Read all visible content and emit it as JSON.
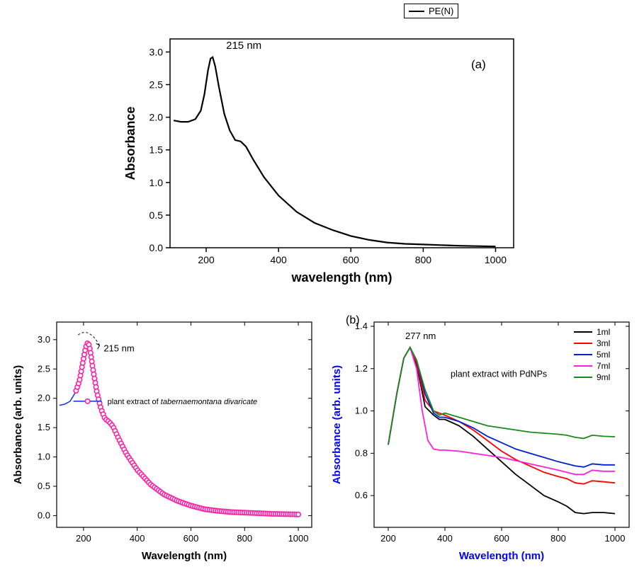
{
  "legend_top": {
    "label": "PE(N)",
    "color": "#000000"
  },
  "chart_a": {
    "type": "line",
    "panel_label": "(a)",
    "peak_label": "215 nm",
    "xlabel": "wavelength (nm)",
    "ylabel": "Absorbance",
    "xlim": [
      100,
      1050
    ],
    "ylim": [
      0,
      3.2
    ],
    "xticks": [
      200,
      400,
      600,
      800,
      1000
    ],
    "yticks": [
      0.0,
      0.5,
      1.0,
      1.5,
      2.0,
      2.5,
      3.0
    ],
    "ytick_labels": [
      "0.0",
      "0.5",
      "1.0",
      "1.5",
      "2.0",
      "2.5",
      "3.0"
    ],
    "line_color": "#000000",
    "line_width": 2.2,
    "background_color": "#ffffff",
    "axis_color": "#000000",
    "data": [
      [
        110,
        1.95
      ],
      [
        130,
        1.93
      ],
      [
        150,
        1.93
      ],
      [
        170,
        1.97
      ],
      [
        185,
        2.1
      ],
      [
        195,
        2.35
      ],
      [
        205,
        2.72
      ],
      [
        212,
        2.9
      ],
      [
        218,
        2.92
      ],
      [
        225,
        2.78
      ],
      [
        235,
        2.47
      ],
      [
        250,
        2.05
      ],
      [
        265,
        1.8
      ],
      [
        280,
        1.65
      ],
      [
        295,
        1.63
      ],
      [
        310,
        1.55
      ],
      [
        330,
        1.35
      ],
      [
        360,
        1.08
      ],
      [
        400,
        0.8
      ],
      [
        450,
        0.55
      ],
      [
        500,
        0.38
      ],
      [
        550,
        0.27
      ],
      [
        600,
        0.18
      ],
      [
        650,
        0.12
      ],
      [
        700,
        0.08
      ],
      [
        750,
        0.06
      ],
      [
        800,
        0.05
      ],
      [
        850,
        0.04
      ],
      [
        900,
        0.03
      ],
      [
        950,
        0.025
      ],
      [
        1000,
        0.02
      ]
    ]
  },
  "chart_b_left": {
    "type": "line_with_markers",
    "peak_label": "215 nm",
    "legend_text": "plant extract of tabernaemontana divaricate",
    "xlabel": "Wavelength (nm)",
    "ylabel": "Absorbance (arb. units)",
    "xlim": [
      100,
      1050
    ],
    "ylim": [
      -0.2,
      3.3
    ],
    "xticks": [
      200,
      400,
      600,
      800,
      1000
    ],
    "yticks": [
      0.0,
      0.5,
      1.0,
      1.5,
      2.0,
      2.5,
      3.0
    ],
    "ytick_labels": [
      "0.0",
      "0.5",
      "1.0",
      "1.5",
      "2.0",
      "2.5",
      "3.0"
    ],
    "line_color": "#1a3fd6",
    "marker_color": "#ff1fa3",
    "marker_fill": "#ffffff",
    "marker_size": 3.2,
    "line_width": 1.6,
    "marker_line_width": 1.6,
    "background_color": "#ffffff",
    "axis_color": "#000000",
    "data": [
      [
        110,
        1.88
      ],
      [
        130,
        1.9
      ],
      [
        150,
        1.95
      ],
      [
        170,
        2.1
      ],
      [
        185,
        2.3
      ],
      [
        195,
        2.55
      ],
      [
        205,
        2.8
      ],
      [
        212,
        2.93
      ],
      [
        218,
        2.95
      ],
      [
        225,
        2.82
      ],
      [
        235,
        2.5
      ],
      [
        250,
        2.1
      ],
      [
        265,
        1.82
      ],
      [
        280,
        1.65
      ],
      [
        295,
        1.6
      ],
      [
        310,
        1.52
      ],
      [
        330,
        1.32
      ],
      [
        360,
        1.05
      ],
      [
        400,
        0.78
      ],
      [
        450,
        0.53
      ],
      [
        500,
        0.36
      ],
      [
        550,
        0.25
      ],
      [
        600,
        0.17
      ],
      [
        650,
        0.11
      ],
      [
        700,
        0.08
      ],
      [
        750,
        0.06
      ],
      [
        800,
        0.05
      ],
      [
        850,
        0.04
      ],
      [
        900,
        0.03
      ],
      [
        950,
        0.025
      ],
      [
        1000,
        0.02
      ]
    ]
  },
  "chart_b_right": {
    "type": "line",
    "panel_label": "(b)",
    "peak_label": "277 nm",
    "annotation": "plant extract with PdNPs",
    "xlabel": "Wavelength (nm)",
    "ylabel": "Absorbance (arb. units)",
    "xlabel_color": "#0000ff",
    "ylabel_color": "#0000ff",
    "xlim": [
      150,
      1050
    ],
    "ylim": [
      0.45,
      1.42
    ],
    "xticks": [
      200,
      400,
      600,
      800,
      1000
    ],
    "yticks": [
      0.6,
      0.8,
      1.0,
      1.2,
      1.4
    ],
    "ytick_labels": [
      "0.6",
      "0.8",
      "1.0",
      "1.2",
      "1.4"
    ],
    "background_color": "#ffffff",
    "axis_color": "#000000",
    "line_width": 1.8,
    "series": [
      {
        "label": "1ml",
        "color": "#000000",
        "data": [
          [
            200,
            0.84
          ],
          [
            230,
            1.08
          ],
          [
            255,
            1.25
          ],
          [
            277,
            1.3
          ],
          [
            300,
            1.22
          ],
          [
            330,
            1.02
          ],
          [
            360,
            0.98
          ],
          [
            380,
            0.96
          ],
          [
            400,
            0.96
          ],
          [
            450,
            0.93
          ],
          [
            500,
            0.88
          ],
          [
            550,
            0.82
          ],
          [
            600,
            0.76
          ],
          [
            650,
            0.7
          ],
          [
            700,
            0.65
          ],
          [
            750,
            0.6
          ],
          [
            800,
            0.57
          ],
          [
            830,
            0.55
          ],
          [
            860,
            0.52
          ],
          [
            890,
            0.515
          ],
          [
            920,
            0.52
          ],
          [
            960,
            0.52
          ],
          [
            1000,
            0.515
          ]
        ]
      },
      {
        "label": "3ml",
        "color": "#ff0000",
        "data": [
          [
            200,
            0.84
          ],
          [
            230,
            1.08
          ],
          [
            255,
            1.25
          ],
          [
            277,
            1.3
          ],
          [
            300,
            1.23
          ],
          [
            330,
            1.05
          ],
          [
            360,
            1.0
          ],
          [
            380,
            0.99
          ],
          [
            400,
            0.98
          ],
          [
            450,
            0.95
          ],
          [
            500,
            0.91
          ],
          [
            550,
            0.86
          ],
          [
            600,
            0.81
          ],
          [
            650,
            0.77
          ],
          [
            700,
            0.74
          ],
          [
            750,
            0.71
          ],
          [
            800,
            0.69
          ],
          [
            830,
            0.68
          ],
          [
            860,
            0.66
          ],
          [
            890,
            0.655
          ],
          [
            920,
            0.67
          ],
          [
            960,
            0.665
          ],
          [
            1000,
            0.66
          ]
        ]
      },
      {
        "label": "5ml",
        "color": "#0020d0",
        "data": [
          [
            200,
            0.84
          ],
          [
            230,
            1.08
          ],
          [
            255,
            1.25
          ],
          [
            277,
            1.3
          ],
          [
            300,
            1.24
          ],
          [
            330,
            1.08
          ],
          [
            360,
            0.99
          ],
          [
            380,
            0.97
          ],
          [
            400,
            0.97
          ],
          [
            450,
            0.95
          ],
          [
            500,
            0.92
          ],
          [
            550,
            0.88
          ],
          [
            600,
            0.85
          ],
          [
            650,
            0.82
          ],
          [
            700,
            0.8
          ],
          [
            750,
            0.78
          ],
          [
            800,
            0.76
          ],
          [
            830,
            0.75
          ],
          [
            860,
            0.74
          ],
          [
            890,
            0.735
          ],
          [
            920,
            0.75
          ],
          [
            960,
            0.745
          ],
          [
            1000,
            0.745
          ]
        ]
      },
      {
        "label": "7ml",
        "color": "#ff20e0",
        "data": [
          [
            200,
            0.84
          ],
          [
            230,
            1.08
          ],
          [
            255,
            1.25
          ],
          [
            277,
            1.3
          ],
          [
            300,
            1.2
          ],
          [
            320,
            1.0
          ],
          [
            340,
            0.86
          ],
          [
            360,
            0.82
          ],
          [
            380,
            0.815
          ],
          [
            400,
            0.815
          ],
          [
            450,
            0.81
          ],
          [
            500,
            0.8
          ],
          [
            550,
            0.79
          ],
          [
            600,
            0.78
          ],
          [
            650,
            0.765
          ],
          [
            700,
            0.75
          ],
          [
            750,
            0.735
          ],
          [
            800,
            0.72
          ],
          [
            830,
            0.71
          ],
          [
            860,
            0.7
          ],
          [
            890,
            0.7
          ],
          [
            920,
            0.72
          ],
          [
            960,
            0.715
          ],
          [
            1000,
            0.715
          ]
        ]
      },
      {
        "label": "9ml",
        "color": "#1a8a1a",
        "data": [
          [
            200,
            0.84
          ],
          [
            230,
            1.08
          ],
          [
            255,
            1.25
          ],
          [
            277,
            1.3
          ],
          [
            300,
            1.24
          ],
          [
            330,
            1.1
          ],
          [
            360,
            1.0
          ],
          [
            380,
            0.98
          ],
          [
            400,
            0.99
          ],
          [
            450,
            0.97
          ],
          [
            500,
            0.95
          ],
          [
            550,
            0.93
          ],
          [
            600,
            0.92
          ],
          [
            650,
            0.91
          ],
          [
            700,
            0.9
          ],
          [
            750,
            0.895
          ],
          [
            800,
            0.89
          ],
          [
            830,
            0.885
          ],
          [
            860,
            0.875
          ],
          [
            890,
            0.87
          ],
          [
            920,
            0.885
          ],
          [
            960,
            0.88
          ],
          [
            1000,
            0.878
          ]
        ]
      }
    ]
  }
}
